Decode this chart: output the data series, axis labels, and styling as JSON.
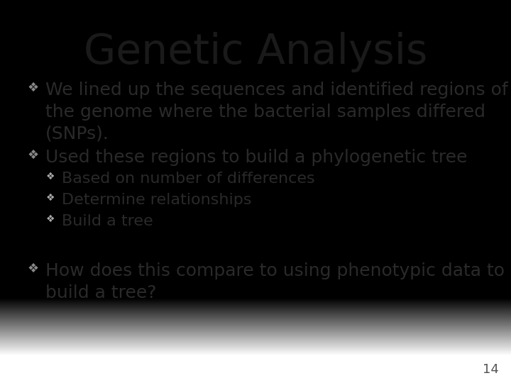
{
  "title": "Genetic Analysis",
  "background_color_top": "#f0eeec",
  "background_color_bottom": "#d0cecc",
  "title_color": "#1a1a1a",
  "text_color": "#2a2a2a",
  "bullet_color_l1": "#888888",
  "bullet_color_l2": "#aaaaaa",
  "page_number": "14",
  "title_fontsize": 42,
  "l1_fontsize": 18,
  "l2_fontsize": 16,
  "bullets": [
    {
      "level": 1,
      "text": "We lined up the sequences and identified regions of\nthe genome where the bacterial samples differed\n(SNPs)."
    },
    {
      "level": 1,
      "text": "Used these regions to build a phylogenetic tree"
    },
    {
      "level": 2,
      "text": "Based on number of differences"
    },
    {
      "level": 2,
      "text": "Determine relationships"
    },
    {
      "level": 2,
      "text": "Build a tree"
    },
    {
      "level": 1,
      "text": "How does this compare to using phenotypic data to\nbuild a tree?"
    }
  ]
}
